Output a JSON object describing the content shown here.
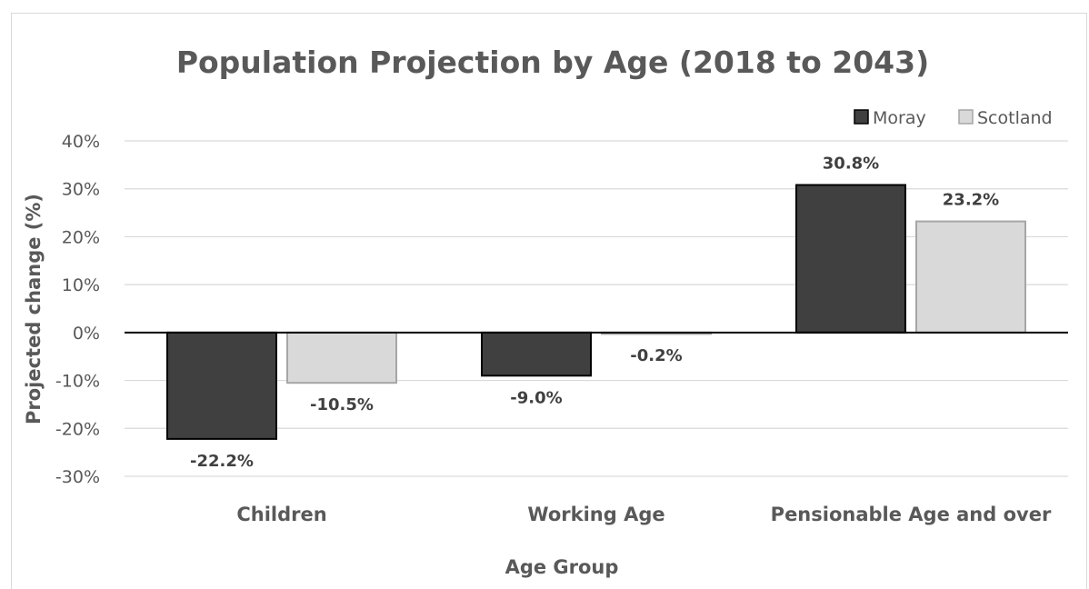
{
  "chart_data": {
    "type": "bar",
    "title": "Population Projection by Age (2018 to 2043)",
    "xlabel": "Age Group",
    "ylabel": "Projected change (%)",
    "categories": [
      "Children",
      "Working Age",
      "Pensionable Age and over"
    ],
    "series": [
      {
        "name": "Moray",
        "values": [
          -22.2,
          -9.0,
          30.8
        ],
        "labels": [
          "-22.2%",
          "-9.0%",
          "30.8%"
        ],
        "color": "#404040",
        "stroke": "#000000"
      },
      {
        "name": "Scotland",
        "values": [
          -10.5,
          -0.2,
          23.2
        ],
        "labels": [
          "-10.5%",
          "-0.2%",
          "23.2%"
        ],
        "color": "#d9d9d9",
        "stroke": "#a6a6a6"
      }
    ],
    "ylim": [
      -30,
      40
    ],
    "yticks": [
      40,
      30,
      20,
      10,
      0,
      -10,
      -20,
      -30
    ],
    "ytick_labels": [
      "40%",
      "30%",
      "20%",
      "10%",
      "0%",
      "-10%",
      "-20%",
      "-30%"
    ],
    "grid": true,
    "legend_position": "top-right"
  }
}
